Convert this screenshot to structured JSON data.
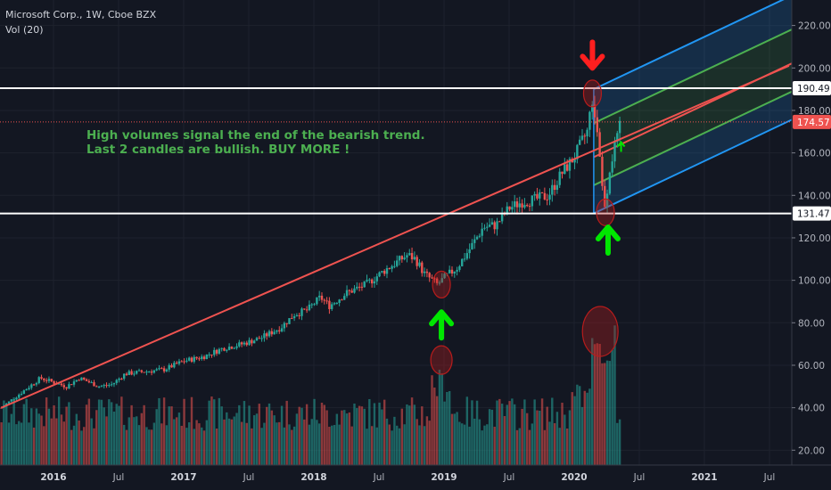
{
  "legend": {
    "symbol_line": "Microsoft Corp., 1W, Cboe BZX",
    "volume_line": "Vol (20)"
  },
  "annotation": {
    "line1": "High volumes signal the end of the bearish trend.",
    "line2": "Last 2 candles are bullish. BUY MORE !"
  },
  "colors": {
    "background": "#131722",
    "up": "#26a69a",
    "down": "#ef5350",
    "trendline": "#ef5350",
    "channel_outer": "#2196f3",
    "channel_inner": "#4caf50",
    "channel_median": "#ef5350",
    "level_line": "#ffffff",
    "arrow_down": "#ff1f1f",
    "arrow_up": "#00e600",
    "annotation_text": "#4caf50"
  },
  "chart_data": {
    "type": "candlestick",
    "title": "Microsoft Corp., 1W, Cboe BZX",
    "ylim": [
      13,
      232
    ],
    "y_ticks": [
      220,
      200,
      180,
      160,
      140,
      120,
      100,
      80,
      60,
      40,
      20
    ],
    "y_tick_labels": [
      "220.00",
      "200.00",
      "180.00",
      "160.00",
      "140.00",
      "120.00",
      "100.00",
      "80.00",
      "60.00",
      "40.00",
      "20.00"
    ],
    "x_ticks": [
      {
        "label": "2016",
        "year": true,
        "x": 2016.0
      },
      {
        "label": "Jul",
        "year": false,
        "x": 2016.5
      },
      {
        "label": "2017",
        "year": true,
        "x": 2017.0
      },
      {
        "label": "Jul",
        "year": false,
        "x": 2017.5
      },
      {
        "label": "2018",
        "year": true,
        "x": 2018.0
      },
      {
        "label": "Jul",
        "year": false,
        "x": 2018.5
      },
      {
        "label": "2019",
        "year": true,
        "x": 2019.0
      },
      {
        "label": "Jul",
        "year": false,
        "x": 2019.5
      },
      {
        "label": "2020",
        "year": true,
        "x": 2020.0
      },
      {
        "label": "Jul",
        "year": false,
        "x": 2020.5
      },
      {
        "label": "2021",
        "year": true,
        "x": 2021.0
      },
      {
        "label": "Jul",
        "year": false,
        "x": 2021.5
      }
    ],
    "price_path": [
      [
        2015.6,
        40
      ],
      [
        2015.75,
        47
      ],
      [
        2015.9,
        54
      ],
      [
        2016.0,
        52
      ],
      [
        2016.1,
        50
      ],
      [
        2016.2,
        54
      ],
      [
        2016.35,
        50
      ],
      [
        2016.45,
        51
      ],
      [
        2016.55,
        56
      ],
      [
        2016.7,
        57
      ],
      [
        2016.85,
        58
      ],
      [
        2017.0,
        62
      ],
      [
        2017.15,
        64
      ],
      [
        2017.3,
        68
      ],
      [
        2017.45,
        70
      ],
      [
        2017.6,
        73
      ],
      [
        2017.75,
        78
      ],
      [
        2017.85,
        84
      ],
      [
        2017.95,
        86
      ],
      [
        2018.05,
        92
      ],
      [
        2018.12,
        88
      ],
      [
        2018.25,
        94
      ],
      [
        2018.4,
        98
      ],
      [
        2018.55,
        105
      ],
      [
        2018.72,
        112
      ],
      [
        2018.78,
        110
      ],
      [
        2018.85,
        103
      ],
      [
        2018.95,
        98
      ],
      [
        2019.0,
        101
      ],
      [
        2019.1,
        106
      ],
      [
        2019.2,
        115
      ],
      [
        2019.3,
        125
      ],
      [
        2019.4,
        126
      ],
      [
        2019.5,
        134
      ],
      [
        2019.6,
        137
      ],
      [
        2019.7,
        138
      ],
      [
        2019.8,
        140
      ],
      [
        2019.9,
        150
      ],
      [
        2020.0,
        158
      ],
      [
        2020.1,
        170
      ],
      [
        2020.14,
        186
      ],
      [
        2020.16,
        178
      ],
      [
        2020.19,
        165
      ],
      [
        2020.22,
        140
      ],
      [
        2020.24,
        135
      ],
      [
        2020.27,
        152
      ],
      [
        2020.3,
        160
      ],
      [
        2020.33,
        166
      ],
      [
        2020.36,
        174.57
      ]
    ],
    "levels": [
      {
        "name": "resistance",
        "value": 190.49,
        "label": "190.49"
      },
      {
        "name": "support",
        "value": 131.47,
        "label": "131.47"
      }
    ],
    "last_price": {
      "value": 174.57,
      "label": "174.57"
    },
    "trendline": {
      "from": [
        2015.6,
        40
      ],
      "to": [
        2021.65,
        201
      ]
    },
    "pitchfork": {
      "x_start": 2020.15,
      "median_start": 158,
      "slope_per_year": 29,
      "upper_offset": 32,
      "lower_offset": -26.5,
      "inner_fraction": 0.5
    },
    "volume_ylim": [
      0,
      130
    ],
    "volume_highlights": [
      {
        "x": 2018.98,
        "value": 55
      },
      {
        "x": 2020.2,
        "value": 70
      }
    ],
    "markers": [
      {
        "type": "arrow-down",
        "x": 2020.14,
        "y": 205
      },
      {
        "type": "arrow-up",
        "x": 2020.26,
        "y": 120
      },
      {
        "type": "arrow-up",
        "x": 2018.98,
        "y": 80
      },
      {
        "type": "arrow-up-small",
        "x": 2020.36,
        "y": 163
      }
    ],
    "circles": [
      {
        "x": 2020.14,
        "y": 188
      },
      {
        "x": 2020.24,
        "y": 132
      },
      {
        "x": 2018.98,
        "y": 98
      }
    ]
  }
}
